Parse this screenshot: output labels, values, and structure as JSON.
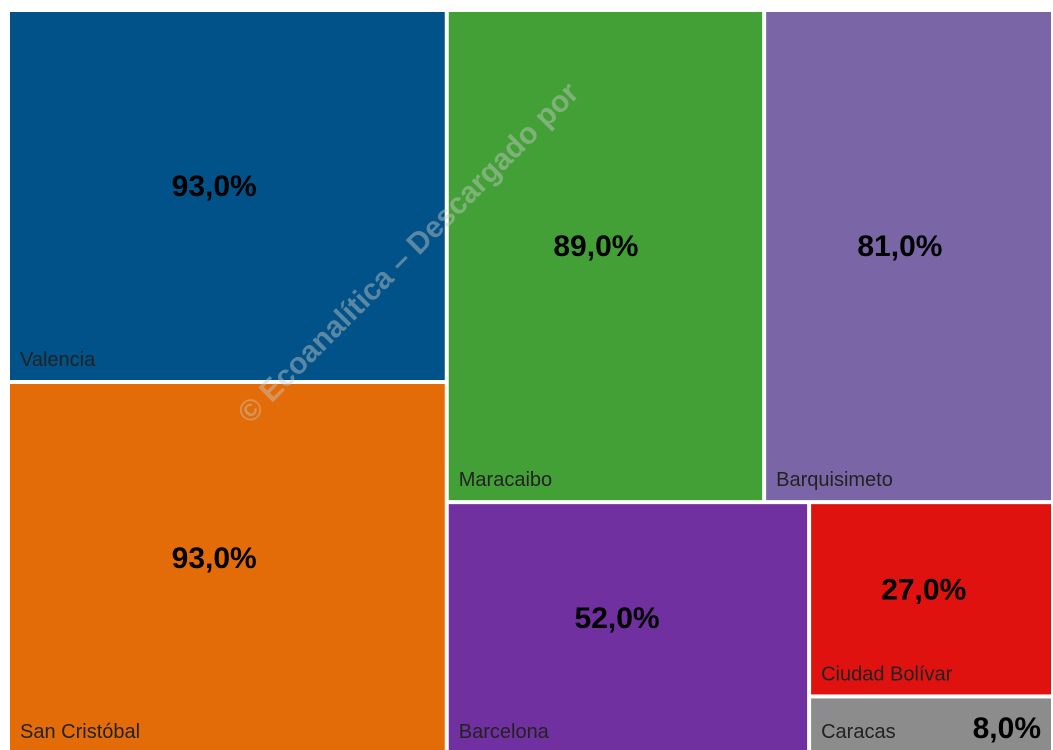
{
  "chart_data": {
    "type": "treemap",
    "categories": [
      "Valencia",
      "San Cristóbal",
      "Maracaibo",
      "Barquisimeto",
      "Barcelona",
      "Ciudad Bolívar",
      "Caracas"
    ],
    "values": [
      93,
      93,
      89,
      81,
      52,
      27,
      8
    ],
    "value_labels": [
      "93,0%",
      "93,0%",
      "89,0%",
      "81,0%",
      "52,0%",
      "27,0%",
      "8,0%"
    ],
    "colors": [
      "#005288",
      "#e36c09",
      "#43a037",
      "#7a66a6",
      "#7030a0",
      "#e0120f",
      "#8c8c8c"
    ],
    "annotation": "© Ecoanalítica – Descargado por"
  }
}
